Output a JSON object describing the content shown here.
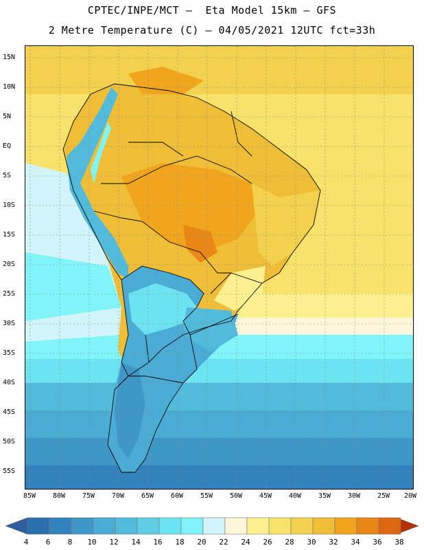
{
  "header": {
    "line1": "CPTEC/INPE/MCT –  Eta Model 15km – GFS",
    "line2": "2 Metre Temperature (C) – 04/05/2021 12UTC fct=33h"
  },
  "map": {
    "lat_ticks": [
      "15N",
      "10N",
      "5N",
      "EQ",
      "5S",
      "10S",
      "15S",
      "20S",
      "25S",
      "30S",
      "35S",
      "40S",
      "45S",
      "50S",
      "55S"
    ],
    "lon_ticks": [
      "85W",
      "80W",
      "75W",
      "70W",
      "65W",
      "60W",
      "55W",
      "50W",
      "45W",
      "40W",
      "35W",
      "30W",
      "25W",
      "20W"
    ]
  },
  "colorbar": {
    "labels": [
      "4",
      "6",
      "8",
      "10",
      "12",
      "14",
      "16",
      "18",
      "20",
      "22",
      "24",
      "26",
      "28",
      "30",
      "32",
      "34",
      "36",
      "38"
    ],
    "colors": [
      "#2a6fae",
      "#3282bd",
      "#3f97c7",
      "#4aacd4",
      "#52bbdc",
      "#5fcde6",
      "#6ce3f1",
      "#7ff5fa",
      "#d2f4fb",
      "#fff7dc",
      "#fdf08e",
      "#f8e26a",
      "#f2d14d",
      "#efbe36",
      "#f0a51d",
      "#e98716",
      "#dd6811",
      "#c8450c",
      "#b23206",
      "#2f5e9c"
    ]
  }
}
